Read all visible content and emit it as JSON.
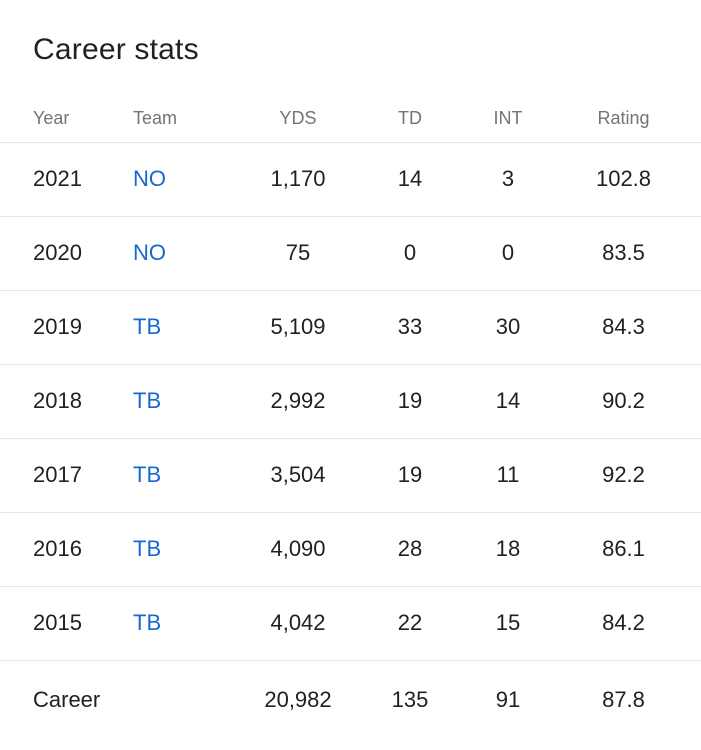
{
  "card": {
    "title": "Career stats",
    "colors": {
      "background": "#ffffff",
      "title_text": "#202124",
      "header_text": "#70757a",
      "body_text": "#202124",
      "team_link_blue": "#1967d2",
      "divider": "#e5e5e5"
    },
    "table": {
      "columns": [
        {
          "key": "year",
          "label": "Year"
        },
        {
          "key": "team",
          "label": "Team"
        },
        {
          "key": "yds",
          "label": "YDS"
        },
        {
          "key": "td",
          "label": "TD"
        },
        {
          "key": "int",
          "label": "INT"
        },
        {
          "key": "rating",
          "label": "Rating"
        }
      ],
      "rows": [
        {
          "year": "2021",
          "team": "NO",
          "yds": "1,170",
          "td": "14",
          "int": "3",
          "rating": "102.8"
        },
        {
          "year": "2020",
          "team": "NO",
          "yds": "75",
          "td": "0",
          "int": "0",
          "rating": "83.5"
        },
        {
          "year": "2019",
          "team": "TB",
          "yds": "5,109",
          "td": "33",
          "int": "30",
          "rating": "84.3"
        },
        {
          "year": "2018",
          "team": "TB",
          "yds": "2,992",
          "td": "19",
          "int": "14",
          "rating": "90.2"
        },
        {
          "year": "2017",
          "team": "TB",
          "yds": "3,504",
          "td": "19",
          "int": "11",
          "rating": "92.2"
        },
        {
          "year": "2016",
          "team": "TB",
          "yds": "4,090",
          "td": "28",
          "int": "18",
          "rating": "86.1"
        },
        {
          "year": "2015",
          "team": "TB",
          "yds": "4,042",
          "td": "22",
          "int": "15",
          "rating": "84.2"
        }
      ],
      "total_row": {
        "label": "Career",
        "yds": "20,982",
        "td": "135",
        "int": "91",
        "rating": "87.8"
      }
    }
  }
}
